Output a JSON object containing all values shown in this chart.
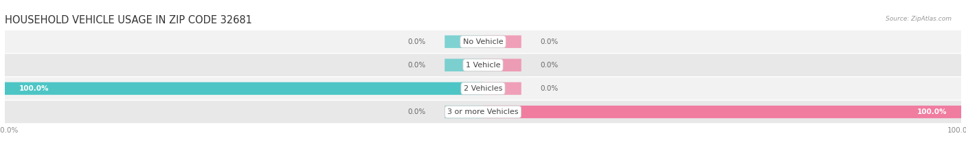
{
  "title": "HOUSEHOLD VEHICLE USAGE IN ZIP CODE 32681",
  "source_text": "Source: ZipAtlas.com",
  "categories": [
    "No Vehicle",
    "1 Vehicle",
    "2 Vehicles",
    "3 or more Vehicles"
  ],
  "owner_values": [
    0.0,
    0.0,
    100.0,
    0.0
  ],
  "renter_values": [
    0.0,
    0.0,
    0.0,
    100.0
  ],
  "owner_color": "#4DC5C5",
  "renter_color": "#F07CA0",
  "row_bg_light": "#F2F2F2",
  "row_bg_dark": "#E8E8E8",
  "max_value": 100.0,
  "bar_height": 0.52,
  "figsize": [
    14.06,
    2.33
  ],
  "dpi": 100,
  "title_fontsize": 10.5,
  "label_fontsize": 7.5,
  "category_fontsize": 8,
  "axis_label_fontsize": 7.5,
  "legend_fontsize": 8
}
